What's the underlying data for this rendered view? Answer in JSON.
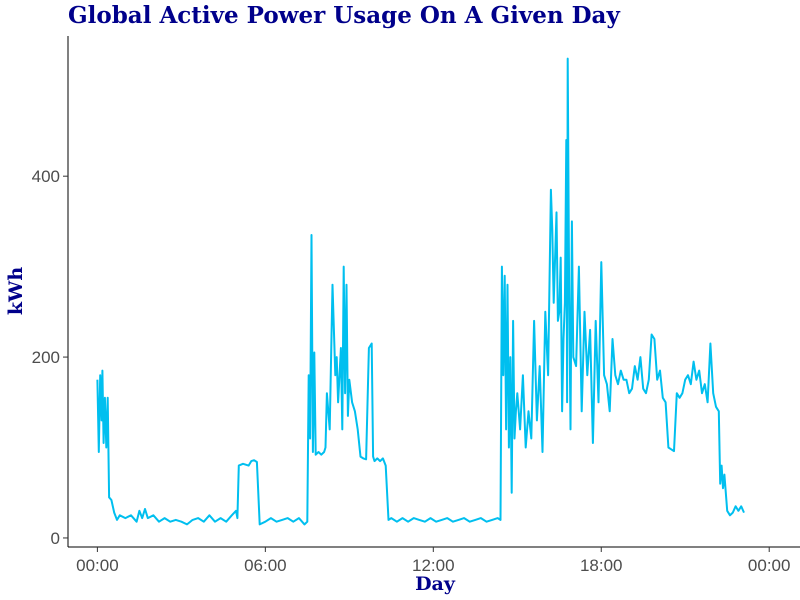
{
  "chart_data": {
    "type": "line",
    "title": "Global Active Power Usage On A Given Day",
    "xlabel": "Day",
    "ylabel": "kWh",
    "x_unit": "hours",
    "xlim": [
      -1.05,
      25.1
    ],
    "ylim": [
      -10,
      555
    ],
    "grid": false,
    "legend": "none",
    "x_ticks": [
      {
        "value": 0,
        "label": "00:00"
      },
      {
        "value": 6,
        "label": "06:00"
      },
      {
        "value": 12,
        "label": "12:00"
      },
      {
        "value": 18,
        "label": "18:00"
      },
      {
        "value": 24,
        "label": "00:00"
      }
    ],
    "y_ticks": [
      {
        "value": 0,
        "label": "0"
      },
      {
        "value": 200,
        "label": "200"
      },
      {
        "value": 400,
        "label": "400"
      }
    ],
    "line_color": "#00bfef",
    "series": [
      {
        "values": [
          [
            0.0,
            175
          ],
          [
            0.05,
            95
          ],
          [
            0.1,
            180
          ],
          [
            0.15,
            130
          ],
          [
            0.18,
            185
          ],
          [
            0.22,
            105
          ],
          [
            0.27,
            155
          ],
          [
            0.32,
            100
          ],
          [
            0.37,
            155
          ],
          [
            0.42,
            45
          ],
          [
            0.5,
            42
          ],
          [
            0.6,
            28
          ],
          [
            0.7,
            20
          ],
          [
            0.8,
            25
          ],
          [
            1.0,
            22
          ],
          [
            1.2,
            25
          ],
          [
            1.4,
            18
          ],
          [
            1.5,
            30
          ],
          [
            1.6,
            22
          ],
          [
            1.7,
            32
          ],
          [
            1.8,
            22
          ],
          [
            2.0,
            25
          ],
          [
            2.2,
            18
          ],
          [
            2.4,
            22
          ],
          [
            2.6,
            18
          ],
          [
            2.8,
            20
          ],
          [
            3.0,
            18
          ],
          [
            3.2,
            15
          ],
          [
            3.4,
            20
          ],
          [
            3.6,
            22
          ],
          [
            3.8,
            18
          ],
          [
            4.0,
            25
          ],
          [
            4.2,
            18
          ],
          [
            4.4,
            22
          ],
          [
            4.6,
            18
          ],
          [
            4.8,
            25
          ],
          [
            4.95,
            30
          ],
          [
            5.0,
            22
          ],
          [
            5.05,
            80
          ],
          [
            5.2,
            82
          ],
          [
            5.4,
            80
          ],
          [
            5.5,
            85
          ],
          [
            5.6,
            86
          ],
          [
            5.7,
            84
          ],
          [
            5.8,
            15
          ],
          [
            6.0,
            18
          ],
          [
            6.2,
            22
          ],
          [
            6.4,
            18
          ],
          [
            6.6,
            20
          ],
          [
            6.8,
            22
          ],
          [
            7.0,
            18
          ],
          [
            7.2,
            22
          ],
          [
            7.4,
            15
          ],
          [
            7.5,
            18
          ],
          [
            7.55,
            180
          ],
          [
            7.6,
            110
          ],
          [
            7.65,
            335
          ],
          [
            7.7,
            95
          ],
          [
            7.75,
            205
          ],
          [
            7.8,
            92
          ],
          [
            7.9,
            95
          ],
          [
            8.0,
            92
          ],
          [
            8.1,
            95
          ],
          [
            8.15,
            100
          ],
          [
            8.2,
            160
          ],
          [
            8.3,
            120
          ],
          [
            8.4,
            280
          ],
          [
            8.5,
            180
          ],
          [
            8.55,
            200
          ],
          [
            8.6,
            150
          ],
          [
            8.7,
            210
          ],
          [
            8.75,
            120
          ],
          [
            8.8,
            300
          ],
          [
            8.85,
            160
          ],
          [
            8.9,
            280
          ],
          [
            8.95,
            135
          ],
          [
            9.0,
            175
          ],
          [
            9.1,
            150
          ],
          [
            9.2,
            140
          ],
          [
            9.3,
            120
          ],
          [
            9.4,
            90
          ],
          [
            9.5,
            88
          ],
          [
            9.6,
            87
          ],
          [
            9.7,
            210
          ],
          [
            9.8,
            215
          ],
          [
            9.85,
            90
          ],
          [
            9.9,
            85
          ],
          [
            10.0,
            88
          ],
          [
            10.1,
            85
          ],
          [
            10.2,
            88
          ],
          [
            10.3,
            80
          ],
          [
            10.4,
            20
          ],
          [
            10.5,
            22
          ],
          [
            10.7,
            18
          ],
          [
            10.9,
            22
          ],
          [
            11.1,
            18
          ],
          [
            11.3,
            22
          ],
          [
            11.5,
            20
          ],
          [
            11.7,
            18
          ],
          [
            11.9,
            22
          ],
          [
            12.1,
            18
          ],
          [
            12.3,
            20
          ],
          [
            12.5,
            22
          ],
          [
            12.7,
            18
          ],
          [
            12.9,
            20
          ],
          [
            13.1,
            22
          ],
          [
            13.3,
            18
          ],
          [
            13.5,
            20
          ],
          [
            13.7,
            22
          ],
          [
            13.9,
            18
          ],
          [
            14.1,
            20
          ],
          [
            14.3,
            22
          ],
          [
            14.4,
            20
          ],
          [
            14.45,
            300
          ],
          [
            14.5,
            180
          ],
          [
            14.55,
            290
          ],
          [
            14.6,
            120
          ],
          [
            14.65,
            280
          ],
          [
            14.7,
            100
          ],
          [
            14.75,
            200
          ],
          [
            14.8,
            50
          ],
          [
            14.85,
            240
          ],
          [
            14.9,
            110
          ],
          [
            14.95,
            140
          ],
          [
            15.0,
            160
          ],
          [
            15.1,
            120
          ],
          [
            15.2,
            180
          ],
          [
            15.3,
            100
          ],
          [
            15.4,
            140
          ],
          [
            15.5,
            110
          ],
          [
            15.6,
            240
          ],
          [
            15.7,
            130
          ],
          [
            15.8,
            190
          ],
          [
            15.9,
            95
          ],
          [
            16.0,
            250
          ],
          [
            16.1,
            180
          ],
          [
            16.2,
            385
          ],
          [
            16.25,
            340
          ],
          [
            16.3,
            260
          ],
          [
            16.4,
            360
          ],
          [
            16.45,
            240
          ],
          [
            16.5,
            250
          ],
          [
            16.55,
            310
          ],
          [
            16.6,
            140
          ],
          [
            16.65,
            220
          ],
          [
            16.7,
            260
          ],
          [
            16.75,
            440
          ],
          [
            16.78,
            150
          ],
          [
            16.8,
            530
          ],
          [
            16.85,
            280
          ],
          [
            16.9,
            120
          ],
          [
            16.95,
            350
          ],
          [
            17.0,
            200
          ],
          [
            17.1,
            190
          ],
          [
            17.2,
            300
          ],
          [
            17.3,
            140
          ],
          [
            17.4,
            250
          ],
          [
            17.5,
            180
          ],
          [
            17.6,
            230
          ],
          [
            17.7,
            105
          ],
          [
            17.8,
            240
          ],
          [
            17.9,
            150
          ],
          [
            18.0,
            305
          ],
          [
            18.1,
            180
          ],
          [
            18.2,
            170
          ],
          [
            18.3,
            140
          ],
          [
            18.4,
            220
          ],
          [
            18.5,
            180
          ],
          [
            18.6,
            170
          ],
          [
            18.7,
            185
          ],
          [
            18.8,
            175
          ],
          [
            18.9,
            175
          ],
          [
            19.0,
            160
          ],
          [
            19.1,
            165
          ],
          [
            19.2,
            190
          ],
          [
            19.3,
            175
          ],
          [
            19.4,
            200
          ],
          [
            19.5,
            165
          ],
          [
            19.6,
            160
          ],
          [
            19.7,
            175
          ],
          [
            19.8,
            225
          ],
          [
            19.9,
            220
          ],
          [
            20.0,
            175
          ],
          [
            20.1,
            185
          ],
          [
            20.2,
            155
          ],
          [
            20.3,
            150
          ],
          [
            20.4,
            100
          ],
          [
            20.5,
            98
          ],
          [
            20.6,
            96
          ],
          [
            20.7,
            160
          ],
          [
            20.8,
            155
          ],
          [
            20.9,
            160
          ],
          [
            21.0,
            175
          ],
          [
            21.1,
            180
          ],
          [
            21.2,
            170
          ],
          [
            21.3,
            195
          ],
          [
            21.4,
            175
          ],
          [
            21.5,
            185
          ],
          [
            21.6,
            160
          ],
          [
            21.7,
            170
          ],
          [
            21.8,
            150
          ],
          [
            21.9,
            215
          ],
          [
            22.0,
            160
          ],
          [
            22.1,
            145
          ],
          [
            22.2,
            140
          ],
          [
            22.25,
            60
          ],
          [
            22.3,
            80
          ],
          [
            22.35,
            55
          ],
          [
            22.4,
            70
          ],
          [
            22.5,
            30
          ],
          [
            22.6,
            25
          ],
          [
            22.7,
            28
          ],
          [
            22.8,
            35
          ],
          [
            22.9,
            30
          ],
          [
            23.0,
            35
          ],
          [
            23.1,
            28
          ]
        ]
      }
    ]
  }
}
